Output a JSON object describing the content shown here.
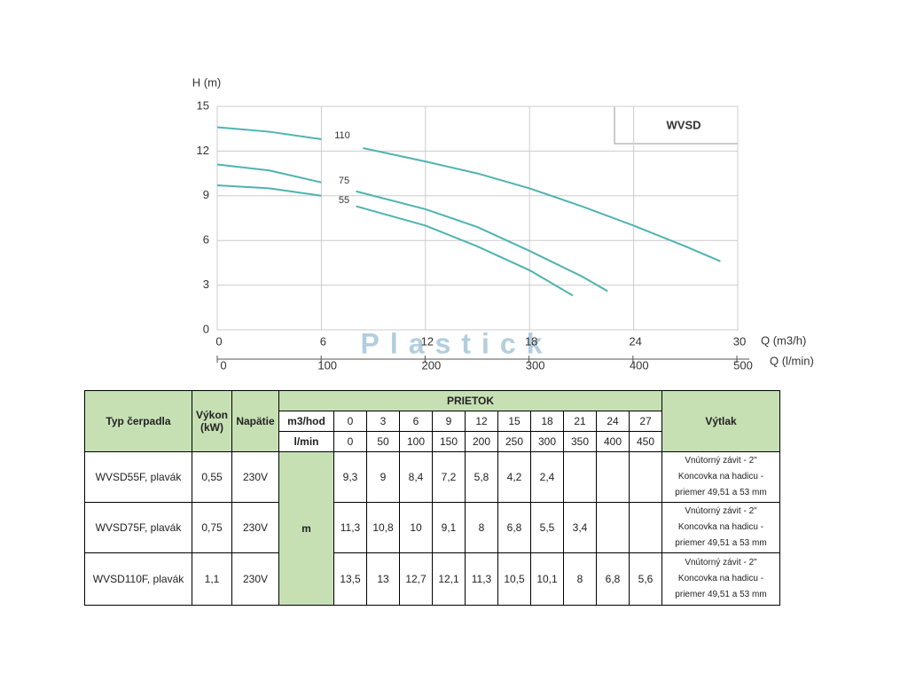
{
  "chart_data": {
    "type": "line",
    "title": "WVSD",
    "y_label": "H (m)",
    "x_label": "Q (m3/h)",
    "x2_label": "Q (l/min)",
    "ylim": [
      0,
      15
    ],
    "yticks": [
      0,
      3,
      6,
      9,
      12,
      15
    ],
    "xlim": [
      0,
      30
    ],
    "xticks": [
      0,
      6,
      12,
      18,
      24,
      30
    ],
    "x2lim": [
      0,
      500
    ],
    "x2ticks": [
      0,
      100,
      200,
      300,
      400,
      500
    ],
    "grid": true,
    "series": [
      {
        "name": "110",
        "color": "#4fb3b0",
        "x": [
          0,
          3,
          6,
          7,
          8.4,
          12,
          15,
          18,
          21,
          24,
          27,
          29
        ],
        "values": [
          13.6,
          13.3,
          12.8,
          null,
          12.2,
          11.3,
          10.5,
          9.5,
          8.3,
          7.0,
          5.6,
          4.6
        ]
      },
      {
        "name": "75",
        "color": "#4fb3b0",
        "x": [
          0,
          3,
          6,
          7,
          8,
          12,
          15,
          18,
          21,
          22.5
        ],
        "values": [
          11.1,
          10.7,
          9.9,
          null,
          9.3,
          8.1,
          6.9,
          5.3,
          3.6,
          2.6
        ]
      },
      {
        "name": "55",
        "color": "#4fb3b0",
        "x": [
          0,
          3,
          6,
          7,
          8,
          12,
          15,
          18,
          20.5
        ],
        "values": [
          9.7,
          9.5,
          9.0,
          null,
          8.3,
          7.0,
          5.6,
          4.0,
          2.3
        ]
      }
    ]
  },
  "watermark": "Plastick",
  "table": {
    "header": {
      "type": "Typ čerpadla",
      "power": "Výkon (kW)",
      "voltage": "Napätie",
      "flow": "PRIETOK",
      "m3h_label": "m3/hod",
      "lmin_label": "l/min",
      "m3h": [
        "0",
        "3",
        "6",
        "9",
        "12",
        "15",
        "18",
        "21",
        "24",
        "27"
      ],
      "lmin": [
        "0",
        "50",
        "100",
        "150",
        "200",
        "250",
        "300",
        "350",
        "400",
        "450"
      ],
      "outlet": "Výtlak"
    },
    "unit": "m",
    "rows": [
      {
        "name": "WVSD55F, plavák",
        "power": "0,55",
        "voltage": "230V",
        "values": [
          "9,3",
          "9",
          "8,4",
          "7,2",
          "5,8",
          "4,2",
          "2,4"
        ],
        "outlet": [
          "Vnútorný závit - 2\"",
          "Koncovka na hadicu -",
          "priemer 49,51 a 53 mm"
        ]
      },
      {
        "name": "WVSD75F, plavák",
        "power": "0,75",
        "voltage": "230V",
        "values": [
          "11,3",
          "10,8",
          "10",
          "9,1",
          "8",
          "6,8",
          "5,5",
          "3,4"
        ],
        "outlet": [
          "Vnútorný závit - 2\"",
          "Koncovka na hadicu -",
          "priemer 49,51 a 53 mm"
        ]
      },
      {
        "name": "WVSD110F, plavák",
        "power": "1,1",
        "voltage": "230V",
        "values": [
          "13,5",
          "13",
          "12,7",
          "12,1",
          "11,3",
          "10,5",
          "10,1",
          "8",
          "6,8",
          "5,6"
        ],
        "outlet": [
          "Vnútorný závit - 2\"",
          "Koncovka na hadicu -",
          "priemer 49,51 a 53 mm"
        ]
      }
    ]
  }
}
